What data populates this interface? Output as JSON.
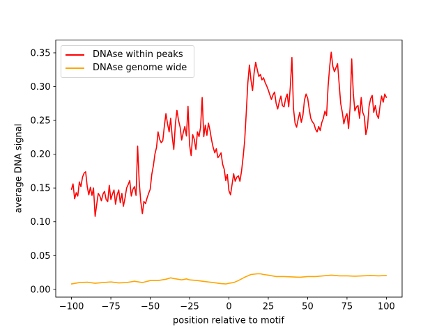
{
  "figure": {
    "background": "#ffffff",
    "text_color": "#000000",
    "legend": {
      "entries": [
        {
          "label": "DNAse within peaks",
          "color": "#ff0000"
        },
        {
          "label": "DNAse genome wide",
          "color": "#ffa500"
        }
      ]
    }
  },
  "chart_data": {
    "type": "line",
    "title": "",
    "xlabel": "position relative to motif",
    "ylabel": "average DNA signal",
    "xlim": [
      -110,
      110
    ],
    "ylim": [
      -0.0115,
      0.369
    ],
    "grid": false,
    "legend_position": "upper-left",
    "xticks": [
      {
        "v": -100,
        "label": "−100"
      },
      {
        "v": -75,
        "label": "−75"
      },
      {
        "v": -50,
        "label": "−50"
      },
      {
        "v": -25,
        "label": "−25"
      },
      {
        "v": 0,
        "label": "0"
      },
      {
        "v": 25,
        "label": "25"
      },
      {
        "v": 50,
        "label": "50"
      },
      {
        "v": 75,
        "label": "75"
      },
      {
        "v": 100,
        "label": "100"
      }
    ],
    "yticks": [
      {
        "v": 0.0,
        "label": "0.00"
      },
      {
        "v": 0.05,
        "label": "0.05"
      },
      {
        "v": 0.1,
        "label": "0.10"
      },
      {
        "v": 0.15,
        "label": "0.15"
      },
      {
        "v": 0.2,
        "label": "0.20"
      },
      {
        "v": 0.25,
        "label": "0.25"
      },
      {
        "v": 0.3,
        "label": "0.30"
      },
      {
        "v": 0.35,
        "label": "0.35"
      }
    ],
    "series": [
      {
        "name": "DNAse within peaks",
        "color": "#ff0000",
        "x_start": -100,
        "x_step": 1,
        "y": [
          0.148,
          0.156,
          0.134,
          0.143,
          0.138,
          0.159,
          0.152,
          0.166,
          0.172,
          0.174,
          0.152,
          0.14,
          0.151,
          0.139,
          0.15,
          0.108,
          0.125,
          0.142,
          0.138,
          0.131,
          0.141,
          0.145,
          0.133,
          0.13,
          0.154,
          0.133,
          0.141,
          0.147,
          0.126,
          0.14,
          0.147,
          0.128,
          0.142,
          0.123,
          0.135,
          0.15,
          0.155,
          0.161,
          0.138,
          0.148,
          0.152,
          0.139,
          0.212,
          0.16,
          0.13,
          0.112,
          0.13,
          0.127,
          0.135,
          0.142,
          0.148,
          0.17,
          0.183,
          0.2,
          0.21,
          0.233,
          0.222,
          0.217,
          0.22,
          0.242,
          0.26,
          0.245,
          0.233,
          0.253,
          0.225,
          0.207,
          0.245,
          0.265,
          0.25,
          0.24,
          0.221,
          0.232,
          0.241,
          0.227,
          0.271,
          0.214,
          0.198,
          0.229,
          0.222,
          0.207,
          0.233,
          0.226,
          0.24,
          0.284,
          0.226,
          0.243,
          0.228,
          0.246,
          0.235,
          0.221,
          0.21,
          0.202,
          0.208,
          0.195,
          0.198,
          0.202,
          0.185,
          0.178,
          0.161,
          0.17,
          0.146,
          0.14,
          0.155,
          0.171,
          0.16,
          0.166,
          0.168,
          0.16,
          0.175,
          0.195,
          0.22,
          0.262,
          0.305,
          0.332,
          0.31,
          0.294,
          0.32,
          0.336,
          0.325,
          0.315,
          0.318,
          0.31,
          0.313,
          0.306,
          0.301,
          0.295,
          0.288,
          0.281,
          0.288,
          0.292,
          0.275,
          0.267,
          0.278,
          0.286,
          0.272,
          0.27,
          0.282,
          0.289,
          0.27,
          0.3,
          0.343,
          0.268,
          0.246,
          0.24,
          0.252,
          0.262,
          0.247,
          0.258,
          0.28,
          0.289,
          0.283,
          0.267,
          0.253,
          0.248,
          0.245,
          0.237,
          0.233,
          0.241,
          0.235,
          0.247,
          0.253,
          0.264,
          0.257,
          0.3,
          0.33,
          0.351,
          0.33,
          0.322,
          0.328,
          0.334,
          0.305,
          0.275,
          0.262,
          0.245,
          0.255,
          0.26,
          0.238,
          0.27,
          0.341,
          0.29,
          0.264,
          0.27,
          0.272,
          0.253,
          0.284,
          0.262,
          0.256,
          0.229,
          0.24,
          0.271,
          0.282,
          0.287,
          0.262,
          0.272,
          0.258,
          0.253,
          0.272,
          0.286,
          0.277,
          0.289,
          0.284
        ]
      },
      {
        "name": "DNAse genome wide",
        "color": "#ffa500",
        "x": [
          -100,
          -95,
          -90,
          -85,
          -80,
          -75,
          -70,
          -65,
          -60,
          -55,
          -50,
          -45,
          -40,
          -37,
          -35,
          -30,
          -27,
          -25,
          -20,
          -15,
          -10,
          -5,
          -2,
          0,
          3,
          6,
          10,
          14,
          18,
          20,
          22,
          25,
          30,
          35,
          40,
          45,
          50,
          55,
          60,
          65,
          68,
          70,
          75,
          80,
          85,
          90,
          95,
          100
        ],
        "y": [
          0.008,
          0.01,
          0.0105,
          0.009,
          0.01,
          0.011,
          0.0095,
          0.01,
          0.012,
          0.01,
          0.013,
          0.013,
          0.015,
          0.017,
          0.016,
          0.014,
          0.0155,
          0.014,
          0.013,
          0.0115,
          0.01,
          0.0085,
          0.008,
          0.009,
          0.01,
          0.013,
          0.018,
          0.022,
          0.023,
          0.023,
          0.022,
          0.021,
          0.019,
          0.019,
          0.0185,
          0.018,
          0.019,
          0.019,
          0.02,
          0.021,
          0.0205,
          0.02,
          0.02,
          0.0195,
          0.02,
          0.0205,
          0.02,
          0.0205
        ]
      }
    ]
  }
}
